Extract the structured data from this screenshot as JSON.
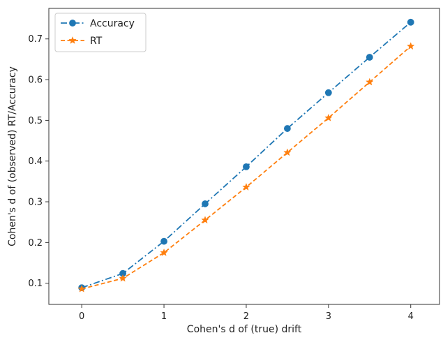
{
  "chart_data": {
    "type": "line",
    "xlabel": "Cohen's d of (true) drift",
    "ylabel": "Cohen's d of (observed) RT/Accuracy",
    "xlim": [
      -0.4,
      4.35
    ],
    "ylim": [
      0.048,
      0.775
    ],
    "xticks": [
      0,
      1,
      2,
      3,
      4
    ],
    "yticks": [
      0.1,
      0.2,
      0.3,
      0.4,
      0.5,
      0.6,
      0.7
    ],
    "x": [
      0,
      0.5,
      1,
      1.5,
      2,
      2.5,
      3,
      3.5,
      4
    ],
    "grid": false,
    "legend_position": "top-left",
    "series": [
      {
        "name": "Accuracy",
        "color": "#1f77b4",
        "line_style": "dash-dot",
        "marker": "circle",
        "values": [
          0.089,
          0.124,
          0.203,
          0.295,
          0.386,
          0.48,
          0.568,
          0.655,
          0.741
        ]
      },
      {
        "name": "RT",
        "color": "#ff7f0e",
        "line_style": "dashed",
        "marker": "star",
        "values": [
          0.086,
          0.112,
          0.175,
          0.255,
          0.336,
          0.421,
          0.506,
          0.594,
          0.682
        ]
      }
    ]
  }
}
